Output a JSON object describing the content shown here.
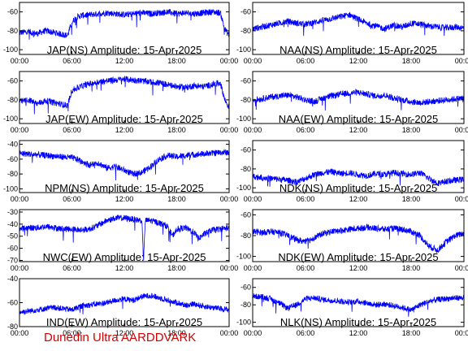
{
  "colors": {
    "trace": "#0000ff",
    "axis": "#000000",
    "footer": "#d40000"
  },
  "footer": {
    "label": "Dunedin Ultra AARDDVARK"
  },
  "chart_data": [
    {
      "type": "line",
      "id": "jap-ns",
      "title": "JAP(NS) Amplitude: 15-Apr-2025",
      "xticks": [
        "00:00",
        "06:00",
        "12:00",
        "18:00",
        "00:00"
      ],
      "yticks": [
        -100,
        -80,
        -60
      ],
      "ylim": [
        -105,
        -50
      ],
      "series": [
        {
          "x": [
            0,
            1,
            2,
            3,
            4,
            5,
            5.5,
            6,
            6.5,
            7,
            8,
            9,
            10,
            11,
            12,
            13,
            14,
            15,
            16,
            17,
            18,
            19,
            20,
            21,
            22,
            23,
            23.5,
            24
          ],
          "y": [
            -82,
            -81,
            -83,
            -80,
            -82,
            -84,
            -85,
            -71,
            -66,
            -64,
            -63,
            -62,
            -61,
            -62,
            -63,
            -62,
            -61,
            -62,
            -61,
            -60,
            -62,
            -61,
            -62,
            -61,
            -60,
            -61,
            -78,
            -85
          ]
        }
      ]
    },
    {
      "type": "line",
      "id": "naa-ns",
      "title": "NAA(NS) Amplitude: 15-Apr-2025",
      "xticks": [
        "00:00",
        "06:00",
        "12:00",
        "18:00",
        "00:00"
      ],
      "yticks": [
        -100,
        -80,
        -60
      ],
      "ylim": [
        -105,
        -50
      ],
      "series": [
        {
          "x": [
            0,
            1,
            2,
            3,
            4,
            5,
            6,
            7,
            8,
            9,
            10,
            11,
            12,
            13,
            14,
            15,
            16,
            17,
            18,
            19,
            20,
            21,
            22,
            23,
            24
          ],
          "y": [
            -78,
            -76,
            -74,
            -72,
            -70,
            -72,
            -73,
            -71,
            -69,
            -67,
            -65,
            -63,
            -68,
            -72,
            -75,
            -78,
            -74,
            -76,
            -72,
            -73,
            -75,
            -76,
            -77,
            -76,
            -77
          ]
        }
      ]
    },
    {
      "type": "line",
      "id": "jap-ew",
      "title": "JAP(EW) Amplitude: 15-Apr-2025",
      "xticks": [
        "00:00",
        "06:00",
        "12:00",
        "18:00",
        "00:00"
      ],
      "yticks": [
        -100,
        -80,
        -60
      ],
      "ylim": [
        -105,
        -50
      ],
      "series": [
        {
          "x": [
            0,
            1,
            2,
            3,
            4,
            5,
            5.5,
            6,
            7,
            8,
            9,
            10,
            11,
            12,
            13,
            14,
            15,
            16,
            17,
            18,
            19,
            20,
            21,
            22,
            23,
            23.5,
            24
          ],
          "y": [
            -82,
            -80,
            -84,
            -81,
            -83,
            -85,
            -86,
            -70,
            -66,
            -63,
            -61,
            -60,
            -59,
            -58,
            -59,
            -60,
            -61,
            -62,
            -64,
            -66,
            -67,
            -65,
            -66,
            -64,
            -62,
            -80,
            -88
          ]
        }
      ]
    },
    {
      "type": "line",
      "id": "naa-ew",
      "title": "NAA(EW) Amplitude: 15-Apr-2025",
      "xticks": [
        "00:00",
        "06:00",
        "12:00",
        "18:00",
        "00:00"
      ],
      "yticks": [
        -100,
        -80,
        -60
      ],
      "ylim": [
        -105,
        -50
      ],
      "series": [
        {
          "x": [
            0,
            1,
            2,
            3,
            4,
            5,
            6,
            7,
            8,
            9,
            10,
            11,
            12,
            13,
            14,
            15,
            16,
            17,
            18,
            19,
            20,
            21,
            22,
            23,
            24
          ],
          "y": [
            -80,
            -79,
            -77,
            -76,
            -75,
            -77,
            -80,
            -82,
            -78,
            -76,
            -74,
            -73,
            -72,
            -74,
            -76,
            -75,
            -78,
            -80,
            -82,
            -83,
            -82,
            -81,
            -80,
            -79,
            -78
          ]
        }
      ]
    },
    {
      "type": "line",
      "id": "npm-ns",
      "title": "NPM(NS) Amplitude: 15-Apr-2025",
      "xticks": [
        "00:00",
        "06:00",
        "12:00",
        "18:00",
        "00:00"
      ],
      "yticks": [
        -100,
        -80,
        -60,
        -40
      ],
      "ylim": [
        -105,
        -35
      ],
      "series": [
        {
          "x": [
            0,
            1,
            2,
            3,
            4,
            5,
            6,
            6.5,
            7,
            8,
            9,
            10,
            11,
            12,
            13,
            14,
            15,
            16,
            17,
            18,
            19,
            20,
            21,
            22,
            23,
            24
          ],
          "y": [
            -52,
            -53,
            -54,
            -55,
            -56,
            -57,
            -58,
            -60,
            -62,
            -68,
            -65,
            -72,
            -70,
            -75,
            -80,
            -78,
            -70,
            -60,
            -55,
            -57,
            -55,
            -54,
            -53,
            -52,
            -51,
            -51
          ]
        }
      ]
    },
    {
      "type": "line",
      "id": "ndk-ns",
      "title": "NDK(NS) Amplitude: 15-Apr-2025",
      "xticks": [
        "00:00",
        "06:00",
        "12:00",
        "18:00",
        "00:00"
      ],
      "yticks": [
        -100,
        -80,
        -60
      ],
      "ylim": [
        -105,
        -50
      ],
      "series": [
        {
          "x": [
            0,
            1,
            2,
            3,
            4,
            5,
            6,
            7,
            8,
            9,
            10,
            11,
            12,
            13,
            14,
            15,
            16,
            17,
            18,
            19,
            20,
            21,
            22,
            23,
            24
          ],
          "y": [
            -88,
            -89,
            -90,
            -91,
            -92,
            -94,
            -90,
            -86,
            -84,
            -83,
            -85,
            -84,
            -86,
            -87,
            -85,
            -86,
            -84,
            -85,
            -86,
            -84,
            -90,
            -95,
            -93,
            -92,
            -91
          ]
        }
      ]
    },
    {
      "type": "line",
      "id": "nwc-ew",
      "title": "NWC(EW) Amplitude: 15-Apr-2025",
      "xticks": [
        "00:00",
        "06:00",
        "12:00",
        "18:00",
        "00:00"
      ],
      "yticks": [
        -70,
        -60,
        -50,
        -40,
        -30
      ],
      "ylim": [
        -71,
        -28
      ],
      "series": [
        {
          "x": [
            0,
            1,
            2,
            3,
            4,
            5,
            6,
            7,
            8,
            9,
            10,
            11,
            12,
            13,
            14,
            14.2,
            14.4,
            15,
            16,
            17,
            17.5,
            18,
            19,
            20,
            20.5,
            21,
            22,
            23,
            24
          ],
          "y": [
            -44,
            -43,
            -43,
            -42,
            -43,
            -44,
            -44,
            -45,
            -44,
            -41,
            -37,
            -35,
            -35,
            -36,
            -37,
            -70,
            -37,
            -37,
            -39,
            -42,
            -50,
            -44,
            -43,
            -47,
            -52,
            -49,
            -45,
            -44,
            -43
          ]
        }
      ]
    },
    {
      "type": "line",
      "id": "ndk-ew",
      "title": "NDK(EW) Amplitude: 15-Apr-2025",
      "xticks": [
        "00:00",
        "06:00",
        "12:00",
        "18:00",
        "00:00"
      ],
      "yticks": [
        -100,
        -80,
        -60
      ],
      "ylim": [
        -105,
        -55
      ],
      "series": [
        {
          "x": [
            0,
            1,
            2,
            3,
            4,
            5,
            6,
            7,
            8,
            9,
            10,
            11,
            12,
            13,
            14,
            15,
            16,
            17,
            18,
            19,
            20,
            21,
            22,
            23,
            24
          ],
          "y": [
            -76,
            -77,
            -76,
            -77,
            -80,
            -84,
            -86,
            -82,
            -78,
            -76,
            -75,
            -74,
            -73,
            -72,
            -73,
            -74,
            -73,
            -74,
            -76,
            -80,
            -90,
            -94,
            -86,
            -80,
            -78
          ]
        }
      ]
    },
    {
      "type": "line",
      "id": "ind-ew",
      "title": "IND(EW) Amplitude: 15-Apr-2025",
      "xticks": [
        "00:00",
        "06:00",
        "12:00",
        "18:00",
        "00:00"
      ],
      "yticks": [
        -80,
        -60,
        -40
      ],
      "ylim": [
        -80,
        -40
      ],
      "series": [
        {
          "x": [
            0,
            1,
            2,
            3,
            4,
            5,
            6,
            7,
            8,
            9,
            10,
            11,
            12,
            13,
            14,
            15,
            16,
            17,
            18,
            19,
            20,
            21,
            22,
            23,
            24
          ],
          "y": [
            -68,
            -67,
            -66,
            -65,
            -64,
            -65,
            -66,
            -63,
            -62,
            -61,
            -60,
            -58,
            -57,
            -58,
            -55,
            -54,
            -56,
            -58,
            -60,
            -62,
            -61,
            -63,
            -64,
            -65,
            -66
          ]
        }
      ]
    },
    {
      "type": "line",
      "id": "nlk-ns",
      "title": "NLK(NS) Amplitude: 15-Apr-2025",
      "xticks": [
        "00:00",
        "06:00",
        "12:00",
        "18:00",
        "00:00"
      ],
      "yticks": [
        -100,
        -80,
        -60
      ],
      "ylim": [
        -105,
        -50
      ],
      "series": [
        {
          "x": [
            0,
            1,
            2,
            3,
            4,
            5,
            6,
            7,
            8,
            9,
            10,
            11,
            12,
            13,
            14,
            15,
            16,
            17,
            18,
            19,
            20,
            21,
            22,
            23,
            24
          ],
          "y": [
            -70,
            -71,
            -73,
            -78,
            -84,
            -80,
            -73,
            -72,
            -74,
            -75,
            -76,
            -77,
            -76,
            -78,
            -80,
            -79,
            -81,
            -83,
            -86,
            -80,
            -76,
            -74,
            -73,
            -72,
            -72
          ]
        }
      ]
    }
  ]
}
